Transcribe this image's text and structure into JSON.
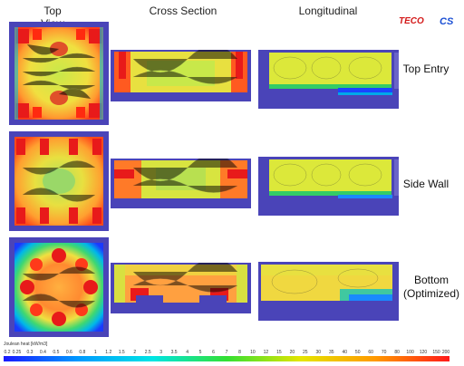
{
  "headers": {
    "top_view": "Top View",
    "cross_section": "Cross Section",
    "longitudinal": "Longitudinal"
  },
  "logos": {
    "teco": "TECO",
    "cs": "CS"
  },
  "rows": [
    {
      "label_lines": [
        "Top Entry"
      ]
    },
    {
      "label_lines": [
        "Side Wall"
      ]
    },
    {
      "label_lines": [
        "Bottom",
        "(Optimized)"
      ]
    }
  ],
  "legend": {
    "title": "Joulean heat [kW/m3]",
    "ticks": [
      "0.2",
      "0.25",
      "0.3",
      "0.4",
      "0.5",
      "0.6",
      "0.8",
      "1",
      "1.2",
      "1.5",
      "2",
      "2.5",
      "3",
      "3.5",
      "4",
      "5",
      "6",
      "7",
      "8",
      "10",
      "12",
      "15",
      "20",
      "25",
      "30",
      "35",
      "40",
      "50",
      "60",
      "70",
      "80",
      "100",
      "120",
      "150",
      "200"
    ],
    "colors": [
      "#1a1aff",
      "#0099ff",
      "#00e5e5",
      "#33e033",
      "#e5e500",
      "#ff9900",
      "#ff1a1a"
    ]
  }
}
